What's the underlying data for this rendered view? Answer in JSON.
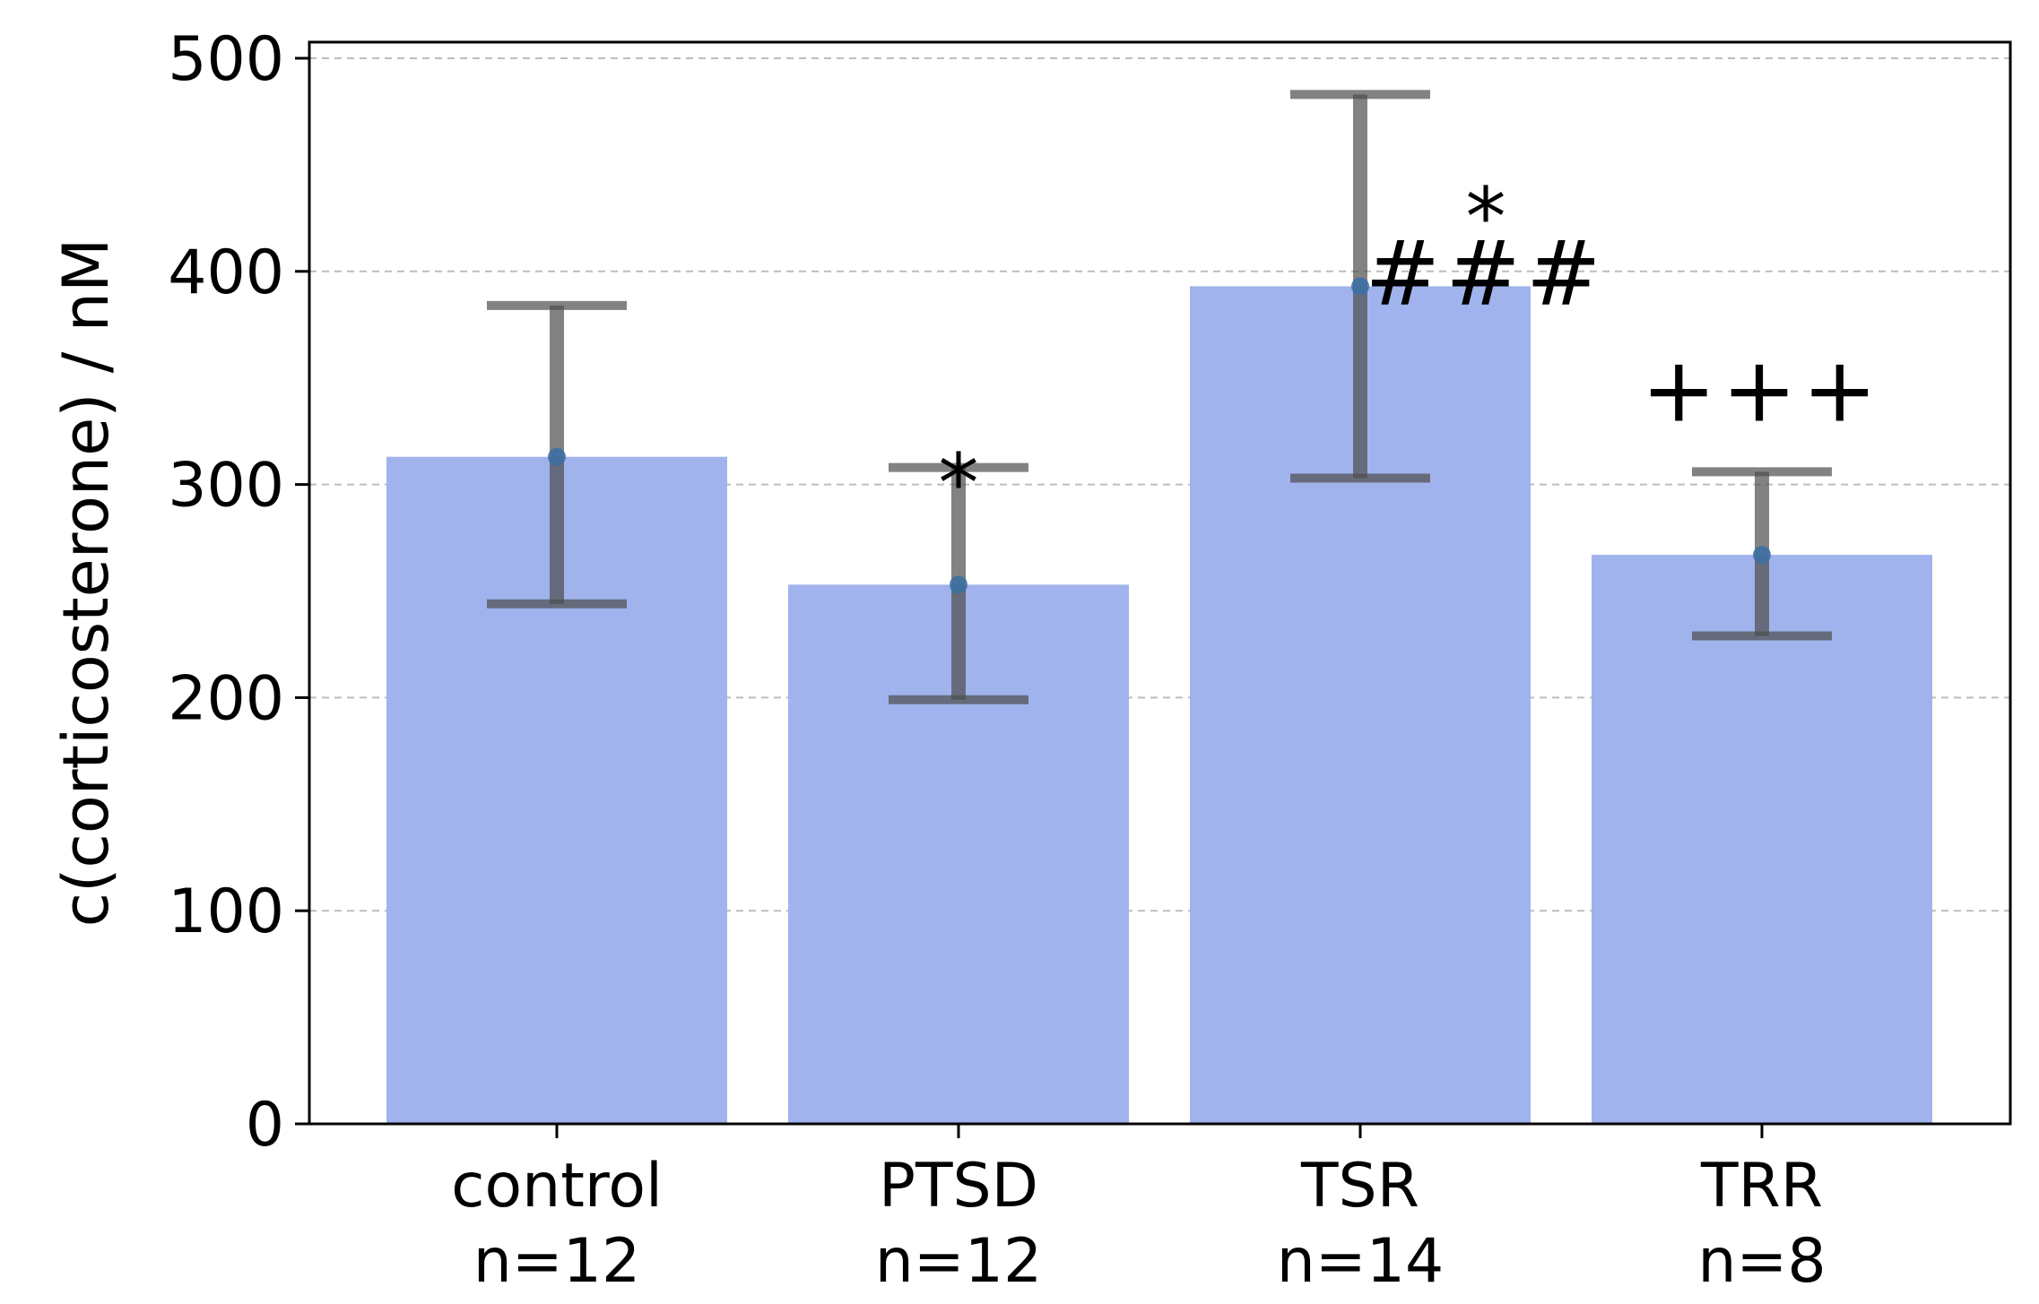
{
  "chart_data": {
    "type": "bar",
    "title": "",
    "xlabel": "",
    "ylabel": "c(corticosterone) / nM",
    "ylim": [
      0,
      500
    ],
    "yticks": [
      0,
      100,
      200,
      300,
      400,
      500
    ],
    "ytick_labels": [
      "0",
      "100",
      "200",
      "300",
      "400",
      "500"
    ],
    "grid": "horizontal dashed",
    "categories": [
      "control",
      "PTSD",
      "TSR",
      "TRR"
    ],
    "sample_sizes": [
      "n=12",
      "n=12",
      "n=14",
      "n=8"
    ],
    "values": [
      313,
      253,
      393,
      267
    ],
    "error_low": [
      244,
      199,
      303,
      229
    ],
    "error_high": [
      384,
      308,
      483,
      306
    ],
    "annotations": [
      {
        "category": "PTSD",
        "lines": [
          "*"
        ],
        "y": 300
      },
      {
        "category": "TSR",
        "lines": [
          "*",
          "###"
        ],
        "y": 425
      },
      {
        "category": "TRR",
        "lines": [
          "+++"
        ],
        "y": 330
      }
    ],
    "colors": {
      "bar": "#a0b3ec",
      "error": "#4d4d4d",
      "point": "#3a6fa5",
      "grid": "#bdbdbd",
      "axis": "#000000"
    }
  }
}
